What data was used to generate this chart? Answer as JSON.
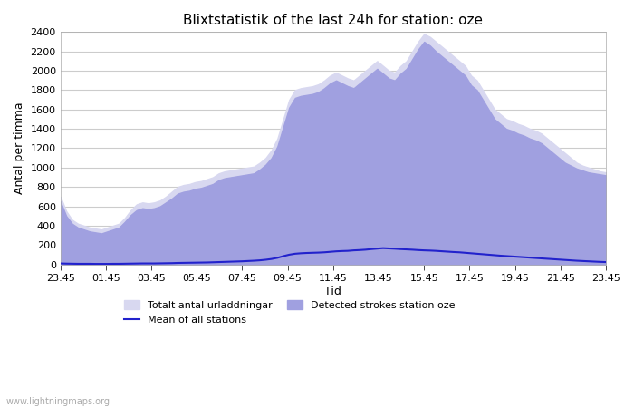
{
  "title": "Blixtstatistik of the last 24h for station: oze",
  "xlabel": "Tid",
  "ylabel": "Antal per timma",
  "ylim": [
    0,
    2400
  ],
  "yticks": [
    0,
    200,
    400,
    600,
    800,
    1000,
    1200,
    1400,
    1600,
    1800,
    2000,
    2200,
    2400
  ],
  "xtick_labels": [
    "23:45",
    "01:45",
    "03:45",
    "05:45",
    "07:45",
    "09:45",
    "11:45",
    "13:45",
    "15:45",
    "17:45",
    "19:45",
    "21:45",
    "23:45"
  ],
  "background_color": "#ffffff",
  "plot_bg_color": "#ffffff",
  "grid_color": "#cccccc",
  "fill_color_total": "#d8d8f0",
  "fill_color_station": "#a0a0e0",
  "line_color": "#2222cc",
  "watermark": "www.lightningmaps.org",
  "legend_labels": [
    "Totalt antal urladdningar",
    "Mean of all stations",
    "Detected strokes station oze"
  ],
  "total_urladdningar": [
    700,
    550,
    460,
    420,
    400,
    380,
    370,
    360,
    380,
    400,
    420,
    480,
    560,
    620,
    640,
    630,
    640,
    660,
    700,
    750,
    800,
    820,
    830,
    850,
    860,
    880,
    900,
    940,
    960,
    970,
    980,
    990,
    1000,
    1010,
    1050,
    1100,
    1180,
    1300,
    1500,
    1700,
    1800,
    1820,
    1830,
    1840,
    1860,
    1900,
    1950,
    1980,
    1950,
    1920,
    1900,
    1950,
    2000,
    2050,
    2100,
    2050,
    2000,
    1980,
    2050,
    2100,
    2200,
    2300,
    2380,
    2350,
    2300,
    2250,
    2200,
    2150,
    2100,
    2050,
    1950,
    1900,
    1800,
    1700,
    1600,
    1550,
    1500,
    1480,
    1450,
    1430,
    1400,
    1380,
    1350,
    1300,
    1250,
    1200,
    1150,
    1100,
    1050,
    1020,
    1000,
    980,
    960,
    950,
    940
  ],
  "station_strokes": [
    650,
    500,
    420,
    380,
    360,
    340,
    330,
    320,
    340,
    360,
    380,
    440,
    510,
    560,
    580,
    570,
    580,
    600,
    640,
    680,
    730,
    750,
    760,
    780,
    790,
    810,
    830,
    870,
    890,
    900,
    910,
    920,
    930,
    940,
    980,
    1030,
    1100,
    1220,
    1420,
    1620,
    1720,
    1740,
    1750,
    1760,
    1780,
    1820,
    1870,
    1900,
    1870,
    1840,
    1820,
    1870,
    1920,
    1970,
    2020,
    1970,
    1920,
    1900,
    1970,
    2020,
    2120,
    2220,
    2300,
    2260,
    2200,
    2150,
    2100,
    2050,
    2000,
    1950,
    1850,
    1800,
    1700,
    1600,
    1500,
    1450,
    1400,
    1380,
    1350,
    1330,
    1300,
    1280,
    1250,
    1200,
    1150,
    1100,
    1050,
    1020,
    990,
    970,
    950,
    940,
    930,
    920
  ],
  "mean_line": [
    10,
    8,
    7,
    6,
    6,
    6,
    5,
    5,
    5,
    6,
    6,
    7,
    8,
    9,
    10,
    10,
    10,
    11,
    12,
    13,
    15,
    16,
    17,
    18,
    19,
    20,
    22,
    24,
    26,
    28,
    30,
    32,
    35,
    38,
    42,
    48,
    56,
    68,
    85,
    100,
    110,
    115,
    118,
    120,
    122,
    125,
    130,
    135,
    138,
    140,
    145,
    148,
    152,
    158,
    163,
    168,
    165,
    162,
    158,
    155,
    152,
    148,
    145,
    143,
    140,
    136,
    132,
    128,
    125,
    120,
    115,
    110,
    105,
    100,
    95,
    90,
    86,
    82,
    78,
    74,
    70,
    66,
    62,
    58,
    54,
    50,
    46,
    42,
    38,
    35,
    32,
    29,
    26,
    24,
    22
  ]
}
